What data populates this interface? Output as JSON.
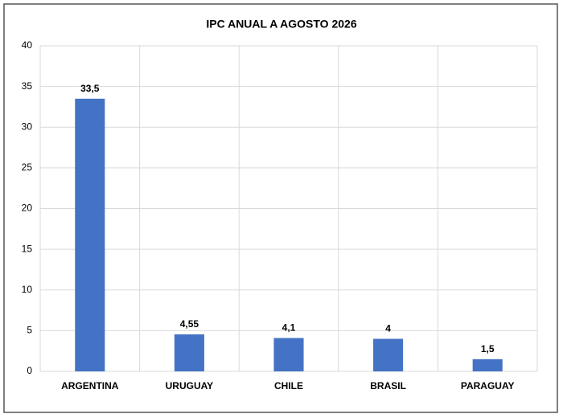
{
  "chart_data": {
    "type": "bar",
    "title": "IPC ANUAL A AGOSTO 2026",
    "categories": [
      "ARGENTINA",
      "URUGUAY",
      "CHILE",
      "BRASIL",
      "PARAGUAY"
    ],
    "values": [
      33.5,
      4.55,
      4.1,
      4,
      1.5
    ],
    "value_labels": [
      "33,5",
      "4,55",
      "4,1",
      "4",
      "1,5"
    ],
    "color": "#4472c4",
    "ylim": [
      0,
      40
    ],
    "yticks": [
      0,
      5,
      10,
      15,
      20,
      25,
      30,
      35,
      40
    ],
    "grid": true
  }
}
